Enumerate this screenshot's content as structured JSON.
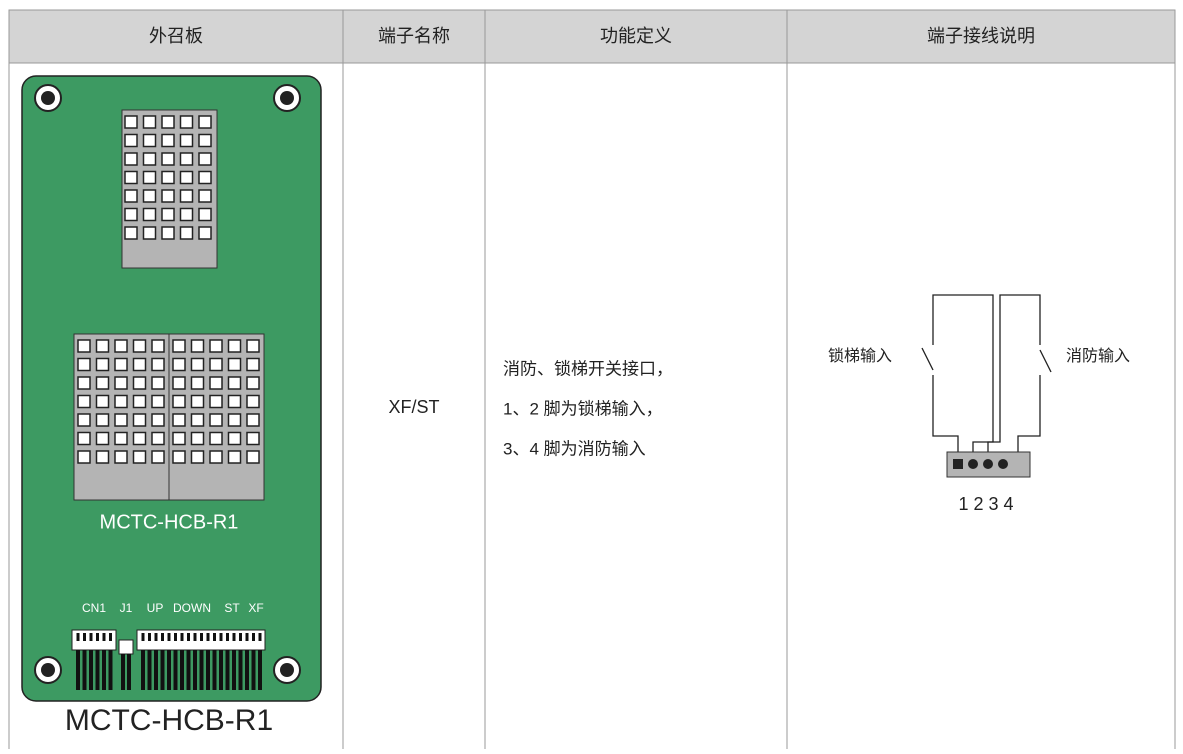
{
  "header": [
    "外召板",
    "端子名称",
    "功能定义",
    "端子接线说明"
  ],
  "row": {
    "board": {
      "label": "MCTC-HCB-R1",
      "connectors": [
        "CN1",
        "J1",
        "UP",
        "DOWN",
        "ST",
        "XF"
      ],
      "caption": "MCTC-HCB-R1"
    },
    "terminal_name": "XF/ST",
    "function_lines": [
      "消防、锁梯开关接口，",
      "1、2 脚为锁梯输入，",
      "3、4 脚为消防输入"
    ],
    "wiring": {
      "left_label": "锁梯输入",
      "right_label": "消防输入",
      "pin_numbers": "1 2 3 4"
    }
  }
}
